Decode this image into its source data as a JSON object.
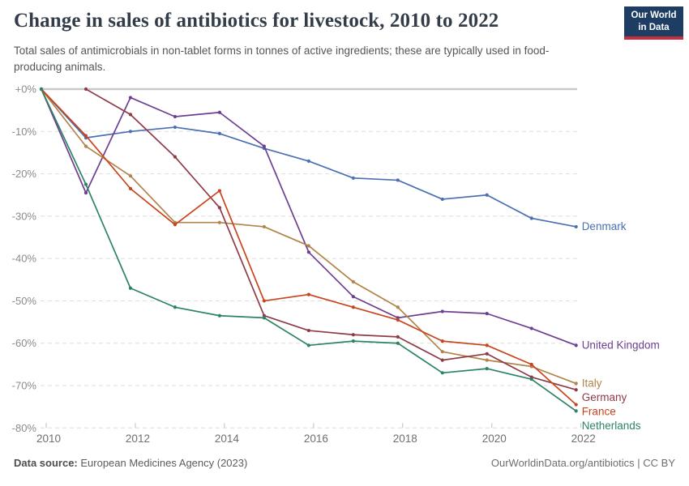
{
  "header": {
    "title": "Change in sales of antibiotics for livestock, 2010 to 2022",
    "subtitle": "Total sales of antimicrobials in non-tablet forms in tonnes of active ingredients; these are typically used in food-producing animals.",
    "logo": {
      "line1": "Our World",
      "line2": "in Data",
      "bg_color": "#1D3D63",
      "accent_color": "#C5303E"
    }
  },
  "chart_data": {
    "type": "line",
    "title": "Change in sales of antibiotics for livestock, 2010 to 2022",
    "x": [
      2010,
      2011,
      2012,
      2013,
      2014,
      2015,
      2016,
      2017,
      2018,
      2019,
      2020,
      2021,
      2022
    ],
    "x_tick_labels": [
      "2010",
      "2012",
      "2014",
      "2016",
      "2018",
      "2020",
      "2022"
    ],
    "y_tick_values": [
      0,
      -10,
      -20,
      -30,
      -40,
      -50,
      -60,
      -70,
      -80
    ],
    "y_tick_labels": [
      "+0%",
      "-10%",
      "-20%",
      "-30%",
      "-40%",
      "-50%",
      "-60%",
      "-70%",
      "-80%"
    ],
    "ylim": [
      -80,
      0
    ],
    "grid": "horizontal-dashed",
    "legend_position": "end-of-line-labels",
    "ylabel": "",
    "xlabel": "",
    "series": [
      {
        "name": "Denmark",
        "color": "#4A6FB2",
        "values": [
          0,
          -11.5,
          -10,
          -9,
          -10.5,
          -14,
          -17,
          -21,
          -21.5,
          -26,
          -25,
          -30.5,
          -32.5
        ]
      },
      {
        "name": "United Kingdom",
        "color": "#6D3E91",
        "values": [
          0,
          -24.5,
          -2,
          -6.5,
          -5.5,
          -13.5,
          -38.5,
          -49,
          -54,
          -52.5,
          -53,
          -56.5,
          -60.5
        ]
      },
      {
        "name": "Italy",
        "color": "#B0844A",
        "values": [
          0,
          -13.5,
          -20.5,
          -31.5,
          -31.5,
          -32.5,
          -37,
          -45.5,
          -51.5,
          -62,
          -64,
          -65.5,
          -69.5
        ]
      },
      {
        "name": "Germany",
        "color": "#8F3B47",
        "values": [
          null,
          0,
          -6,
          -16,
          -28,
          -53.5,
          -57,
          -58,
          -58.5,
          -64,
          -62.5,
          -68,
          -71
        ]
      },
      {
        "name": "France",
        "color": "#C8441D",
        "values": [
          0,
          -11,
          -23.5,
          -32,
          -24,
          -50,
          -48.5,
          -51.5,
          -54.5,
          -59.5,
          -60.5,
          -65,
          -74.5
        ]
      },
      {
        "name": "Netherlands",
        "color": "#2C8465",
        "values": [
          0,
          -22.5,
          -47,
          -51.5,
          -53.5,
          -54,
          -60.5,
          -59.5,
          -60,
          -67,
          -66,
          -68.5,
          -76
        ]
      }
    ]
  },
  "footer": {
    "source_label": "Data source:",
    "source_text": " European Medicines Agency (2023)",
    "link_text": "OurWorldinData.org/antibiotics | CC BY"
  }
}
